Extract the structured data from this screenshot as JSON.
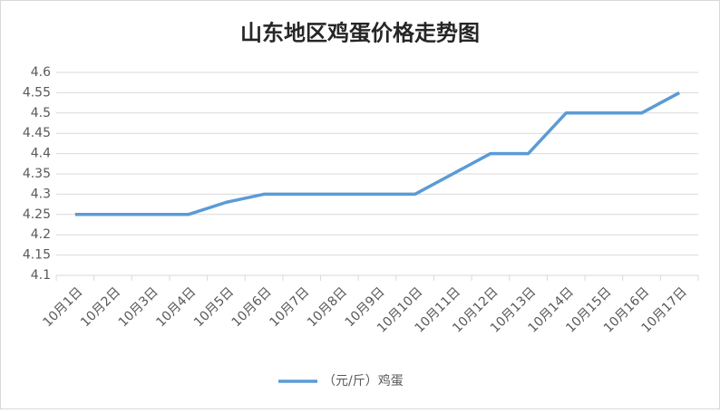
{
  "chart_data": {
    "type": "line",
    "title": "山东地区鸡蛋价格走势图",
    "categories": [
      "10月1日",
      "10月2日",
      "10月3日",
      "10月4日",
      "10月5日",
      "10月6日",
      "10月7日",
      "10月8日",
      "10月9日",
      "10月10日",
      "10月11日",
      "10月12日",
      "10月13日",
      "10月14日",
      "10月15日",
      "10月16日",
      "10月17日"
    ],
    "series": [
      {
        "name": "（元/斤）鸡蛋",
        "color": "#5b9bd5",
        "values": [
          4.25,
          4.25,
          4.25,
          4.25,
          4.28,
          4.3,
          4.3,
          4.3,
          4.3,
          4.3,
          4.35,
          4.4,
          4.4,
          4.5,
          4.5,
          4.5,
          4.55
        ]
      }
    ],
    "ylim": [
      4.1,
      4.6
    ],
    "yticks": [
      4.1,
      4.15,
      4.2,
      4.25,
      4.3,
      4.35,
      4.4,
      4.45,
      4.5,
      4.55,
      4.6
    ],
    "grid": true,
    "legend": "bottom"
  }
}
